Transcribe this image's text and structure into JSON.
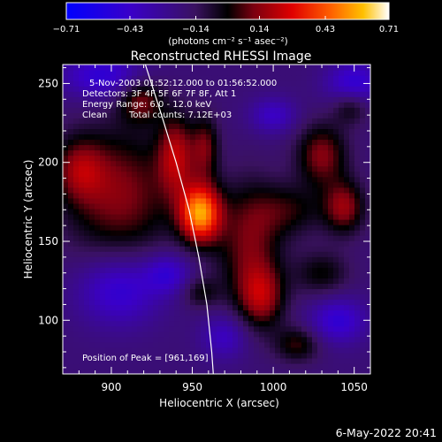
{
  "chart_data": {
    "type": "heatmap",
    "title": "Reconstructed RHESSI Image",
    "xlabel": "Heliocentric X (arcsec)",
    "ylabel": "Heliocentric Y (arcsec)",
    "xlim": [
      870,
      1060
    ],
    "ylim": [
      66,
      262
    ],
    "xticks": [
      900,
      950,
      1000,
      1050
    ],
    "yticks": [
      100,
      150,
      200,
      250
    ],
    "colorbar": {
      "min": -0.71,
      "max": 0.71,
      "tick_values": [
        -0.71,
        -0.43,
        -0.14,
        0.14,
        0.43,
        0.71
      ],
      "tick_labels": [
        "−0.71",
        "−0.43",
        "−0.14",
        "0.14",
        "0.43",
        "0.71"
      ],
      "units": "(photons cm⁻² s⁻¹ asec⁻²)"
    },
    "annotations": {
      "time_range": "5-Nov-2003 01:52:12.000 to 01:56:52.000",
      "detectors": "Detectors: 3F 4F 5F 6F 7F 8F, Att 1",
      "energy_range": "Energy Range: 6.0 - 12.0 keV",
      "algorithm": "Clean",
      "total_counts": "Total counts: 7.12E+03",
      "peak": "Position of Peak = [961,169]"
    },
    "sources": [
      {
        "x": 955,
        "y": 168,
        "sx": 9,
        "sy": 13,
        "amp": 0.71
      },
      {
        "x": 940,
        "y": 205,
        "sx": 8,
        "sy": 18,
        "amp": 0.36
      },
      {
        "x": 958,
        "y": 210,
        "sx": 6,
        "sy": 14,
        "amp": 0.28
      },
      {
        "x": 905,
        "y": 180,
        "sx": 24,
        "sy": 30,
        "amp": 0.33
      },
      {
        "x": 880,
        "y": 196,
        "sx": 11,
        "sy": 14,
        "amp": 0.26
      },
      {
        "x": 918,
        "y": 240,
        "sx": 10,
        "sy": 10,
        "amp": 0.3
      },
      {
        "x": 985,
        "y": 148,
        "sx": 14,
        "sy": 28,
        "amp": 0.3
      },
      {
        "x": 1010,
        "y": 170,
        "sx": 16,
        "sy": 12,
        "amp": 0.2
      },
      {
        "x": 1030,
        "y": 205,
        "sx": 11,
        "sy": 14,
        "amp": 0.33
      },
      {
        "x": 1044,
        "y": 172,
        "sx": 9,
        "sy": 12,
        "amp": 0.34
      },
      {
        "x": 1048,
        "y": 236,
        "sx": 8,
        "sy": 8,
        "amp": 0.22
      },
      {
        "x": 993,
        "y": 115,
        "sx": 10,
        "sy": 14,
        "amp": 0.32
      },
      {
        "x": 1030,
        "y": 130,
        "sx": 12,
        "sy": 10,
        "amp": 0.2
      },
      {
        "x": 1015,
        "y": 85,
        "sx": 10,
        "sy": 8,
        "amp": 0.24
      },
      {
        "x": 955,
        "y": 118,
        "sx": 8,
        "sy": 7,
        "amp": 0.18
      },
      {
        "x": 935,
        "y": 130,
        "sx": 10,
        "sy": 9,
        "amp": -0.25
      },
      {
        "x": 905,
        "y": 120,
        "sx": 18,
        "sy": 16,
        "amp": -0.3
      },
      {
        "x": 895,
        "y": 255,
        "sx": 18,
        "sy": 10,
        "amp": -0.3
      },
      {
        "x": 1050,
        "y": 250,
        "sx": 12,
        "sy": 10,
        "amp": -0.3
      },
      {
        "x": 1000,
        "y": 230,
        "sx": 10,
        "sy": 8,
        "amp": -0.22
      },
      {
        "x": 1040,
        "y": 100,
        "sx": 12,
        "sy": 10,
        "amp": -0.28
      },
      {
        "x": 970,
        "y": 90,
        "sx": 10,
        "sy": 10,
        "amp": -0.22
      }
    ],
    "limb_curve": [
      [
        921,
        262
      ],
      [
        931,
        230
      ],
      [
        940,
        200
      ],
      [
        948,
        170
      ],
      [
        954,
        140
      ],
      [
        959,
        110
      ],
      [
        962,
        80
      ],
      [
        963,
        66
      ]
    ]
  },
  "footer_date": "6-May-2022 20:41"
}
